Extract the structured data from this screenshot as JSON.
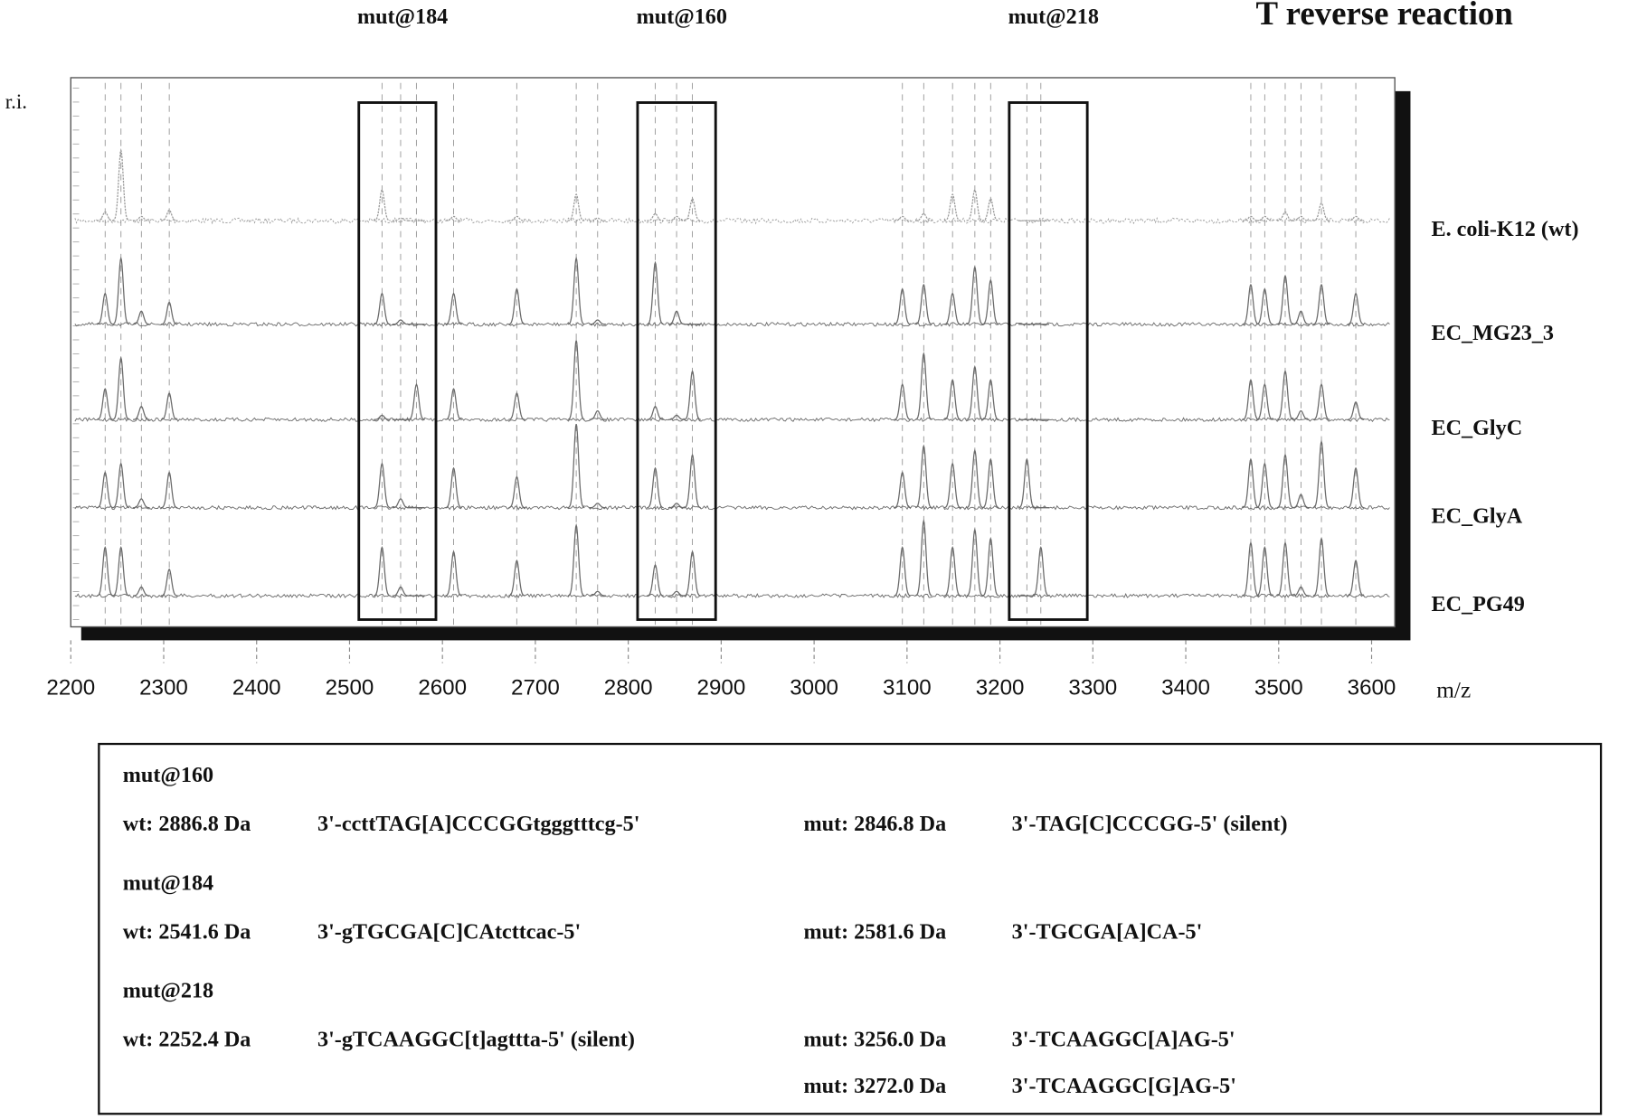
{
  "chart_data": {
    "type": "spectrum",
    "title": "T reverse reaction",
    "y_label": "r.i.",
    "x_label": "m/z",
    "xlim": [
      2200,
      3625
    ],
    "xticks": [
      2200,
      2300,
      2400,
      2500,
      2600,
      2700,
      2800,
      2900,
      3000,
      3100,
      3200,
      3300,
      3400,
      3500,
      3600
    ],
    "ylim": [
      0,
      100
    ],
    "x": [
      2237,
      2254,
      2276,
      2306,
      2535,
      2555,
      2572,
      2612,
      2680,
      2744,
      2767,
      2829,
      2852,
      2869,
      3095,
      3118,
      3149,
      3173,
      3190,
      3229,
      3244,
      3470,
      3485,
      3507,
      3524,
      3546,
      3583
    ],
    "series": [
      {
        "name": "E. coli-K12 (wt)",
        "color": "#9a9a9a",
        "values": [
          10,
          80,
          5,
          12,
          35,
          3,
          0,
          5,
          5,
          30,
          3,
          8,
          5,
          25,
          5,
          8,
          30,
          35,
          25,
          0,
          0,
          5,
          5,
          10,
          5,
          20,
          5
        ]
      },
      {
        "name": "EC_MG23_3",
        "color": "#6a6a6a",
        "values": [
          35,
          75,
          15,
          25,
          35,
          5,
          0,
          35,
          40,
          75,
          5,
          70,
          15,
          0,
          40,
          45,
          35,
          65,
          50,
          0,
          0,
          45,
          40,
          55,
          15,
          45,
          35
        ]
      },
      {
        "name": "EC_GlyC",
        "color": "#6a6a6a",
        "values": [
          35,
          70,
          15,
          30,
          5,
          0,
          40,
          35,
          30,
          90,
          10,
          15,
          5,
          55,
          40,
          75,
          45,
          60,
          45,
          0,
          0,
          45,
          40,
          55,
          10,
          40,
          20
        ]
      },
      {
        "name": "EC_GlyA",
        "color": "#6a6a6a",
        "values": [
          40,
          50,
          10,
          40,
          50,
          10,
          0,
          45,
          35,
          95,
          5,
          45,
          5,
          60,
          40,
          70,
          50,
          65,
          55,
          55,
          0,
          55,
          50,
          60,
          15,
          75,
          45
        ]
      },
      {
        "name": "EC_PG49",
        "color": "#6a6a6a",
        "values": [
          55,
          55,
          10,
          30,
          55,
          10,
          0,
          50,
          40,
          80,
          5,
          35,
          5,
          50,
          55,
          85,
          55,
          75,
          65,
          0,
          55,
          60,
          55,
          60,
          10,
          65,
          40
        ]
      }
    ],
    "highlights": [
      {
        "label": "mut@184",
        "range": [
          2510,
          2593
        ]
      },
      {
        "label": "mut@160",
        "range": [
          2810,
          2894
        ]
      },
      {
        "label": "mut@218",
        "range": [
          3210,
          3294
        ]
      }
    ]
  },
  "table": {
    "groups": [
      {
        "title": "mut@160",
        "wt": "wt: 2886.8 Da",
        "wt_seq": "3'-ccttTAG[A]CCCGGtgggtttcg-5'",
        "muts": [
          {
            "mass": "mut: 2846.8 Da",
            "seq": "3'-TAG[C]CCCGG-5' (silent)"
          }
        ]
      },
      {
        "title": "mut@184",
        "wt": "wt: 2541.6 Da",
        "wt_seq": "3'-gTGCGA[C]CAtcttcac-5'",
        "muts": [
          {
            "mass": "mut: 2581.6 Da",
            "seq": "3'-TGCGA[A]CA-5'"
          }
        ]
      },
      {
        "title": "mut@218",
        "wt": "wt: 2252.4 Da",
        "wt_seq": "3'-gTCAAGGC[t]agttta-5' (silent)",
        "muts": [
          {
            "mass": "mut: 3256.0 Da",
            "seq": "3'-TCAAGGC[A]AG-5'"
          },
          {
            "mass": "mut: 3272.0 Da",
            "seq": "3'-TCAAGGC[G]AG-5'"
          }
        ]
      }
    ]
  }
}
